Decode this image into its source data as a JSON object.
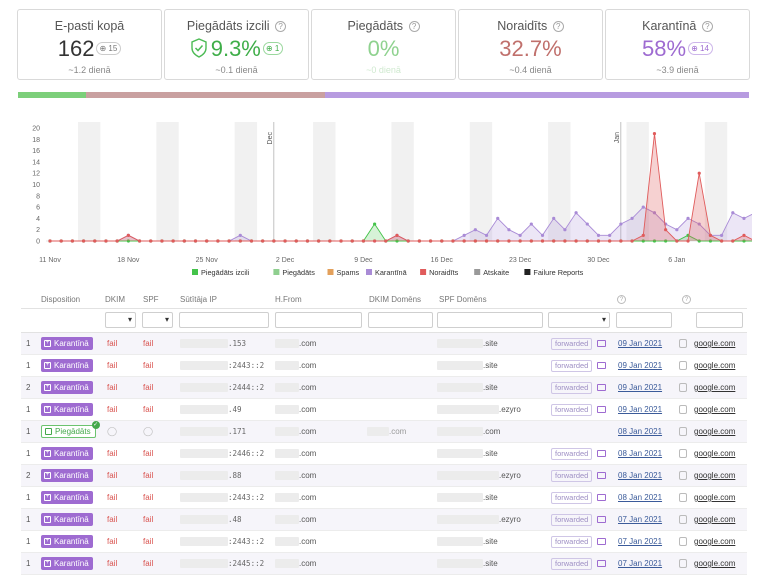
{
  "cards": [
    {
      "title": "E-pasti kopā",
      "help": false,
      "value": "162",
      "delta": "15",
      "sub": "~1.2 dienā",
      "color": "#333333"
    },
    {
      "title": "Piegādāts izcili",
      "help": true,
      "value": "9.3%",
      "delta": "1",
      "sub": "~0.1 dienā",
      "color": "#3fae49",
      "shield": true
    },
    {
      "title": "Piegādāts",
      "help": true,
      "value": "0%",
      "delta": "",
      "sub": "~0 dienā",
      "color": "#8fd28f"
    },
    {
      "title": "Noraidīts",
      "help": true,
      "value": "32.7%",
      "delta": "",
      "sub": "~0.4 dienā",
      "color": "#c0706c"
    },
    {
      "title": "Karantīnā",
      "help": true,
      "value": "58%",
      "delta": "14",
      "sub": "~3.9 dienā",
      "color": "#9e6bd1"
    }
  ],
  "distribution": [
    {
      "label": "Piegādāts izcili",
      "percent": 9.3,
      "color": "#7ccf7a"
    },
    {
      "label": "Noraidīts",
      "percent": 32.7,
      "color": "#c9a0a0"
    },
    {
      "label": "Karantīnā",
      "percent": 58,
      "color": "#b79be0"
    }
  ],
  "chart_data": {
    "type": "line",
    "ylim": [
      0,
      20
    ],
    "yticks": [
      0,
      2,
      4,
      6,
      8,
      10,
      12,
      14,
      16,
      18,
      20
    ],
    "xtick_labels": [
      "11 Nov",
      "18 Nov",
      "25 Nov",
      "2 Dec",
      "9 Dec",
      "16 Dec",
      "23 Dec",
      "30 Dec",
      "6 Jan"
    ],
    "marker_labels": [
      "Dec",
      "Jan"
    ],
    "x_start": "2020-11-11",
    "days": 62,
    "grid": false,
    "legend_position": "bottom",
    "series": [
      {
        "name": "Piegādāts izcili",
        "color": "#44c34a",
        "points": [
          [
            28,
            0
          ],
          [
            29,
            3
          ],
          [
            30,
            0
          ],
          [
            56,
            0
          ],
          [
            57,
            1
          ],
          [
            58,
            0
          ],
          [
            59,
            0
          ],
          [
            60,
            0
          ],
          [
            61,
            0
          ]
        ]
      },
      {
        "name": "Piegādāts",
        "color": "#8fcf8f",
        "points": []
      },
      {
        "name": "Spams",
        "color": "#e3a05b",
        "points": []
      },
      {
        "name": "Karantīnā",
        "color": "#a98bd6",
        "points": [
          [
            7,
            1
          ],
          [
            8,
            0
          ],
          [
            17,
            1
          ],
          [
            18,
            0
          ],
          [
            31,
            1
          ],
          [
            32,
            0
          ],
          [
            36,
            0
          ],
          [
            37,
            1
          ],
          [
            38,
            2
          ],
          [
            39,
            1
          ],
          [
            40,
            4
          ],
          [
            41,
            2
          ],
          [
            42,
            1
          ],
          [
            43,
            3
          ],
          [
            44,
            1
          ],
          [
            45,
            4
          ],
          [
            46,
            2
          ],
          [
            47,
            5
          ],
          [
            48,
            3
          ],
          [
            49,
            1
          ],
          [
            50,
            1
          ],
          [
            51,
            3
          ],
          [
            52,
            4
          ],
          [
            53,
            6
          ],
          [
            54,
            5
          ],
          [
            55,
            3
          ],
          [
            56,
            2
          ],
          [
            57,
            4
          ],
          [
            58,
            3
          ],
          [
            59,
            1
          ],
          [
            60,
            1
          ],
          [
            61,
            5
          ],
          [
            62,
            4
          ],
          [
            63,
            5
          ]
        ]
      },
      {
        "name": "Noraidīts",
        "color": "#e05b5b",
        "points": [
          [
            7,
            1
          ],
          [
            8,
            0
          ],
          [
            31,
            1
          ],
          [
            32,
            0
          ],
          [
            50,
            0
          ],
          [
            51,
            0
          ],
          [
            52,
            0
          ],
          [
            53,
            1
          ],
          [
            54,
            19
          ],
          [
            55,
            2
          ],
          [
            56,
            0
          ],
          [
            57,
            0
          ],
          [
            58,
            12
          ],
          [
            59,
            1
          ],
          [
            60,
            0
          ],
          [
            61,
            0
          ],
          [
            62,
            1
          ],
          [
            63,
            0
          ]
        ]
      },
      {
        "name": "Atskaite",
        "color": "#999999",
        "points": []
      },
      {
        "name": "Failure Reports",
        "color": "#222222",
        "points": []
      }
    ]
  },
  "table": {
    "headers": {
      "disposition": "Disposition",
      "dkim": "DKIM",
      "spf": "SPF",
      "ip": "Sūtītāja IP",
      "hfrom": "H.From",
      "dkim_domain": "DKIM Domēns",
      "spf_domain": "SPF Domēns"
    },
    "rows": [
      {
        "count": "1",
        "disposition": "Karantīnā",
        "ok": false,
        "dkim": "fail",
        "spf": "fail",
        "ip": ".153",
        "hfrom": ".com",
        "dkim_domain": "",
        "spf_domain": ".site",
        "policy": "forwarded",
        "date": "09 Jan 2021",
        "reporter": "google.com"
      },
      {
        "count": "1",
        "disposition": "Karantīnā",
        "ok": false,
        "dkim": "fail",
        "spf": "fail",
        "ip": ":2443::2",
        "hfrom": ".com",
        "dkim_domain": "",
        "spf_domain": ".site",
        "policy": "forwarded",
        "date": "09 Jan 2021",
        "reporter": "google.com"
      },
      {
        "count": "2",
        "disposition": "Karantīnā",
        "ok": false,
        "dkim": "fail",
        "spf": "fail",
        "ip": ":2444::2",
        "hfrom": ".com",
        "dkim_domain": "",
        "spf_domain": ".site",
        "policy": "forwarded",
        "date": "09 Jan 2021",
        "reporter": "google.com"
      },
      {
        "count": "1",
        "disposition": "Karantīnā",
        "ok": false,
        "dkim": "fail",
        "spf": "fail",
        "ip": ".49",
        "hfrom": ".com",
        "dkim_domain": "",
        "spf_domain": ".ezyro",
        "policy": "forwarded",
        "date": "09 Jan 2021",
        "reporter": "google.com"
      },
      {
        "count": "1",
        "disposition": "Piegādāts",
        "ok": true,
        "dkim": "",
        "spf": "",
        "ip": ".171",
        "hfrom": ".com",
        "dkim_domain": ".com",
        "spf_domain": ".com",
        "policy": "",
        "date": "08 Jan 2021",
        "reporter": "google.com"
      },
      {
        "count": "1",
        "disposition": "Karantīnā",
        "ok": false,
        "dkim": "fail",
        "spf": "fail",
        "ip": ":2446::2",
        "hfrom": ".com",
        "dkim_domain": "",
        "spf_domain": ".site",
        "policy": "forwarded",
        "date": "08 Jan 2021",
        "reporter": "google.com"
      },
      {
        "count": "2",
        "disposition": "Karantīnā",
        "ok": false,
        "dkim": "fail",
        "spf": "fail",
        "ip": ".88",
        "hfrom": ".com",
        "dkim_domain": "",
        "spf_domain": ".ezyro",
        "policy": "forwarded",
        "date": "08 Jan 2021",
        "reporter": "google.com"
      },
      {
        "count": "1",
        "disposition": "Karantīnā",
        "ok": false,
        "dkim": "fail",
        "spf": "fail",
        "ip": ":2443::2",
        "hfrom": ".com",
        "dkim_domain": "",
        "spf_domain": ".site",
        "policy": "forwarded",
        "date": "08 Jan 2021",
        "reporter": "google.com"
      },
      {
        "count": "1",
        "disposition": "Karantīnā",
        "ok": false,
        "dkim": "fail",
        "spf": "fail",
        "ip": ".48",
        "hfrom": ".com",
        "dkim_domain": "",
        "spf_domain": ".ezyro",
        "policy": "forwarded",
        "date": "07 Jan 2021",
        "reporter": "google.com"
      },
      {
        "count": "1",
        "disposition": "Karantīnā",
        "ok": false,
        "dkim": "fail",
        "spf": "fail",
        "ip": ":2443::2",
        "hfrom": ".com",
        "dkim_domain": "",
        "spf_domain": ".site",
        "policy": "forwarded",
        "date": "07 Jan 2021",
        "reporter": "google.com"
      },
      {
        "count": "1",
        "disposition": "Karantīnā",
        "ok": false,
        "dkim": "fail",
        "spf": "fail",
        "ip": ":2445::2",
        "hfrom": ".com",
        "dkim_domain": "",
        "spf_domain": ".site",
        "policy": "forwarded",
        "date": "07 Jan 2021",
        "reporter": "google.com"
      }
    ]
  }
}
